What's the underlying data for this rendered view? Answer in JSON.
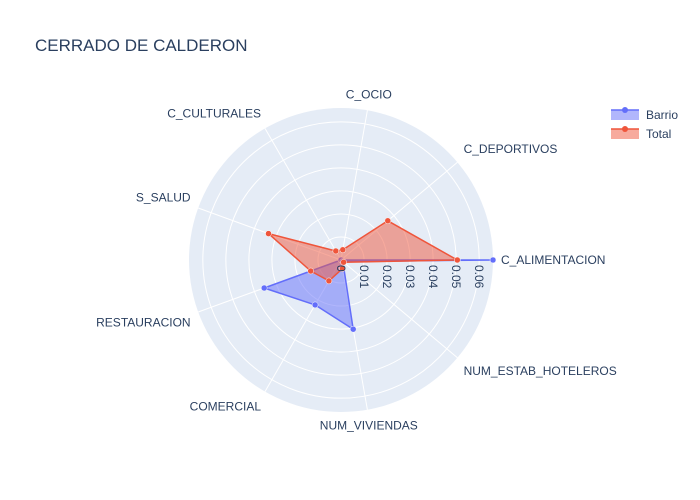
{
  "chart_data": {
    "type": "radar",
    "title": "CERRADO DE CALDERON",
    "axes": [
      "C_ALIMENTACION",
      "C_DEPORTIVOS",
      "C_OCIO",
      "C_CULTURALES",
      "S_SALUD",
      "RESTAURACION",
      "COMERCIAL",
      "NUM_VIVIENDAS",
      "NUM_ESTAB_HOTELEROS"
    ],
    "radial_ticks": [
      0,
      0.01,
      0.02,
      0.03,
      0.04,
      0.05,
      0.06
    ],
    "radial_tick_labels": [
      "0",
      "0.01",
      "0.02",
      "0.03",
      "0.04",
      "0.05",
      "0.06"
    ],
    "rmax": 0.066,
    "grid": true,
    "legend_position": "top-right",
    "series": [
      {
        "name": "Barrio",
        "color": "#636efa",
        "values": [
          0.066,
          0.0,
          0.0,
          0.0,
          0.0,
          0.0355,
          0.0225,
          0.0305,
          0.001
        ]
      },
      {
        "name": "Total",
        "color": "#ef553b",
        "values": [
          0.0505,
          0.0265,
          0.0045,
          0.0045,
          0.0335,
          0.014,
          0.0105,
          0.0038,
          0.0015
        ]
      }
    ]
  },
  "colors": {
    "polar_bg": "#e5ecf6",
    "grid": "#ffffff",
    "text": "#2a3f5f"
  }
}
